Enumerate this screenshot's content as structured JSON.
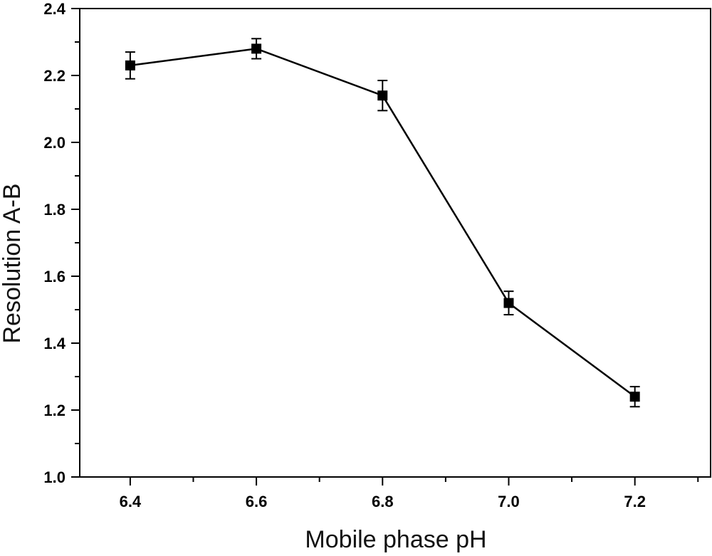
{
  "chart_data": {
    "type": "line",
    "title": "",
    "xlabel": "Mobile phase pH",
    "ylabel": "Resolution A-B",
    "xlim": [
      6.32,
      7.32
    ],
    "ylim": [
      1.0,
      2.4
    ],
    "x_ticks": [
      "6.4",
      "6.6",
      "6.8",
      "7.0",
      "7.2"
    ],
    "y_ticks": [
      "1.0",
      "1.2",
      "1.4",
      "1.6",
      "1.8",
      "2.0",
      "2.2",
      "2.4"
    ],
    "grid": false,
    "legend": "none",
    "series": [
      {
        "x": [
          6.4,
          6.6,
          6.8,
          7.0,
          7.2
        ],
        "y": [
          2.23,
          2.28,
          2.14,
          1.52,
          1.24
        ],
        "error": [
          0.04,
          0.03,
          0.045,
          0.035,
          0.03
        ],
        "color": "#000000",
        "marker": "square"
      }
    ]
  }
}
